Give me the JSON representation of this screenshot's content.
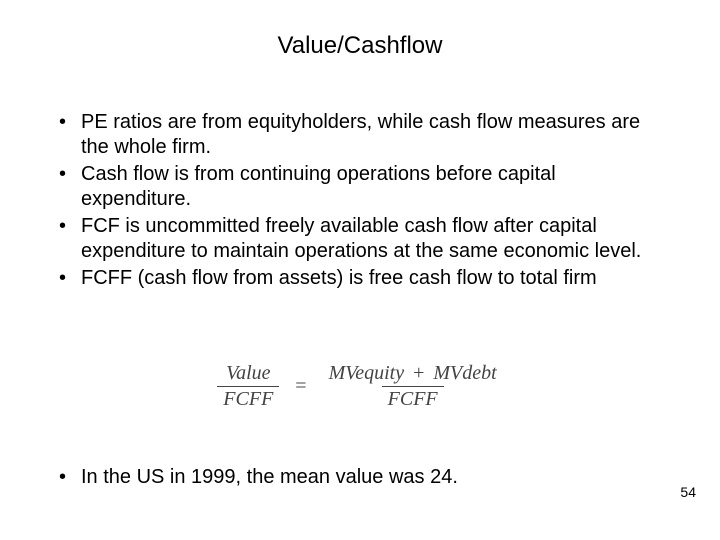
{
  "title": "Value/Cashflow",
  "bullets": [
    "PE ratios are from equityholders, while cash flow measures are the whole firm.",
    "Cash flow is from continuing operations before capital expenditure.",
    "FCF is uncommitted freely available cash flow after capital expenditure to maintain operations at the same economic level.",
    "FCFF (cash flow from assets) is free cash flow to total firm"
  ],
  "formula": {
    "left_num": "Value",
    "left_den": "FCFF",
    "eq": "=",
    "right_num_a": "MVequity",
    "plus": "+",
    "right_num_b": "MVdebt",
    "right_den": "FCFF",
    "color": "#444444",
    "fontsize": 20,
    "font_family": "Times New Roman"
  },
  "last_bullet": "In the US in 1999, the mean value was 24.",
  "page_number": "54",
  "style": {
    "background_color": "#ffffff",
    "text_color": "#000000",
    "title_fontsize": 24,
    "body_fontsize": 20,
    "pagenum_fontsize": 14,
    "font_family": "Arial"
  }
}
